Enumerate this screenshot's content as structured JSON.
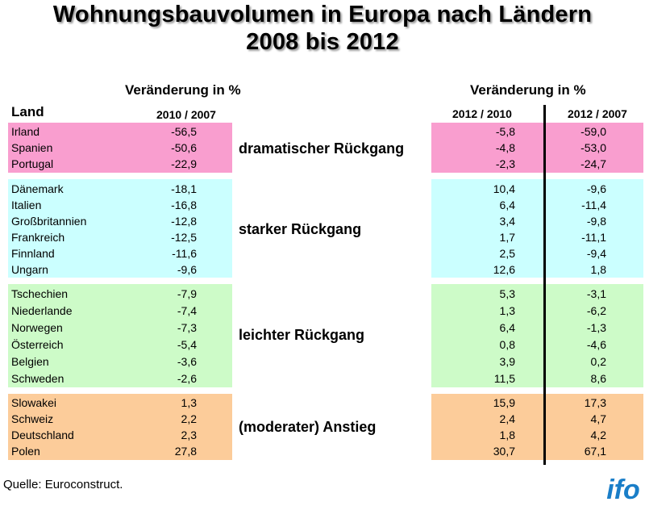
{
  "title": {
    "line1": "Wohnungsbauvolumen in Europa nach Ländern",
    "line2": "2008 bis 2012"
  },
  "left_header": {
    "change": "Veränderung in %",
    "land": "Land",
    "period": "2010 / 2007"
  },
  "right_header": {
    "change": "Veränderung in %",
    "period1": "2012 / 2010",
    "period2": "2012 / 2007"
  },
  "groups": [
    {
      "label": "dramatischer Rückgang",
      "color": "#f99ecf",
      "rows": [
        {
          "country": "Irland",
          "c2010_2007": "-56,5",
          "c2012_2010": "-5,8",
          "c2012_2007": "-59,0"
        },
        {
          "country": "Spanien",
          "c2010_2007": "-50,6",
          "c2012_2010": "-4,8",
          "c2012_2007": "-53,0"
        },
        {
          "country": "Portugal",
          "c2010_2007": "-22,9",
          "c2012_2010": "-2,3",
          "c2012_2007": "-24,7"
        }
      ]
    },
    {
      "label": "starker Rückgang",
      "color": "#cbffff",
      "rows": [
        {
          "country": "Dänemark",
          "c2010_2007": "-18,1",
          "c2012_2010": "10,4",
          "c2012_2007": "-9,6"
        },
        {
          "country": "Italien",
          "c2010_2007": "-16,8",
          "c2012_2010": "6,4",
          "c2012_2007": "-11,4"
        },
        {
          "country": "Großbritannien",
          "c2010_2007": "-12,8",
          "c2012_2010": "3,4",
          "c2012_2007": "-9,8"
        },
        {
          "country": "Frankreich",
          "c2010_2007": "-12,5",
          "c2012_2010": "1,7",
          "c2012_2007": "-11,1"
        },
        {
          "country": "Finnland",
          "c2010_2007": "-11,6",
          "c2012_2010": "2,5",
          "c2012_2007": "-9,4"
        },
        {
          "country": "Ungarn",
          "c2010_2007": "-9,6",
          "c2012_2010": "12,6",
          "c2012_2007": "1,8"
        }
      ]
    },
    {
      "label": "leichter Rückgang",
      "color": "#cdfbc8",
      "rows": [
        {
          "country": "Tschechien",
          "c2010_2007": "-7,9",
          "c2012_2010": "5,3",
          "c2012_2007": "-3,1"
        },
        {
          "country": "Niederlande",
          "c2010_2007": "-7,4",
          "c2012_2010": "1,3",
          "c2012_2007": "-6,2"
        },
        {
          "country": "Norwegen",
          "c2010_2007": "-7,3",
          "c2012_2010": "6,4",
          "c2012_2007": "-1,3"
        },
        {
          "country": "Österreich",
          "c2010_2007": "-5,4",
          "c2012_2010": "0,8",
          "c2012_2007": "-4,6"
        },
        {
          "country": "Belgien",
          "c2010_2007": "-3,6",
          "c2012_2010": "3,9",
          "c2012_2007": "0,2"
        },
        {
          "country": "Schweden",
          "c2010_2007": "-2,6",
          "c2012_2010": "11,5",
          "c2012_2007": "8,6"
        }
      ]
    },
    {
      "label": "(moderater) Anstieg",
      "color": "#fccc9a",
      "rows": [
        {
          "country": "Slowakei",
          "c2010_2007": "1,3",
          "c2012_2010": "15,9",
          "c2012_2007": "17,3"
        },
        {
          "country": "Schweiz",
          "c2010_2007": "2,2",
          "c2012_2010": "2,4",
          "c2012_2007": "4,7"
        },
        {
          "country": "Deutschland",
          "c2010_2007": "2,3",
          "c2012_2010": "1,8",
          "c2012_2007": "4,2"
        },
        {
          "country": "Polen",
          "c2010_2007": "27,8",
          "c2012_2010": "30,7",
          "c2012_2007": "67,1"
        }
      ]
    }
  ],
  "source": "Quelle: Euroconstruct.",
  "logo": {
    "text": "ifo",
    "color": "#1a7ec8"
  }
}
